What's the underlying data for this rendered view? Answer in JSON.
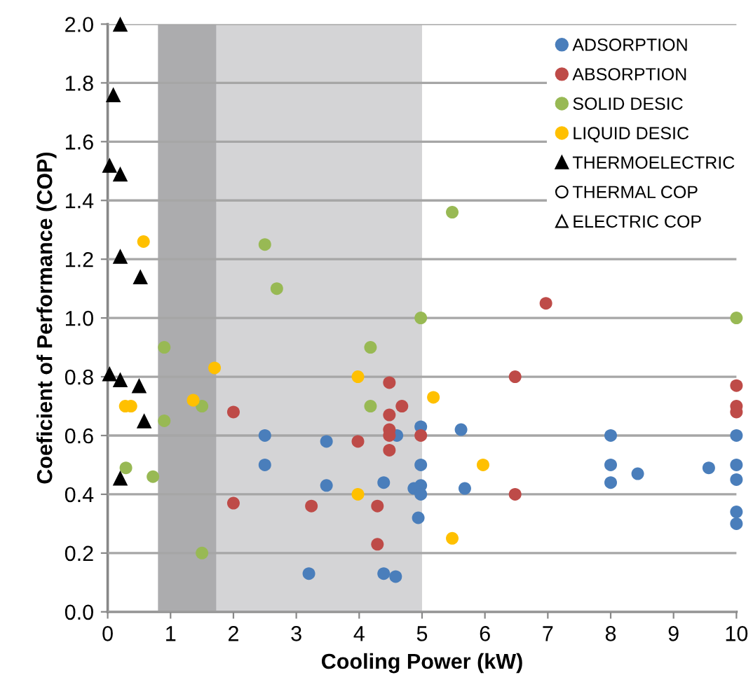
{
  "chart_data": {
    "type": "scatter",
    "xlabel": "Cooling Power (kW)",
    "ylabel": "Coeficient of Performance (COP)",
    "xlim": [
      0,
      10
    ],
    "xticks": [
      0,
      1,
      2,
      3,
      4,
      5,
      6,
      7,
      8,
      9,
      10
    ],
    "ylim": [
      0,
      2.0
    ],
    "yticks": [
      {
        "value": 0,
        "label": "0.0"
      },
      {
        "value": 0.2,
        "label": "0.2"
      },
      {
        "value": 0.4,
        "label": "0.4"
      },
      {
        "value": 0.6,
        "label": "0.6"
      },
      {
        "value": 0.8,
        "label": "0.8"
      },
      {
        "value": 1.0,
        "label": "1.0"
      },
      {
        "value": 1.2,
        "label": "1.2"
      },
      {
        "value": 1.4,
        "label": "1.4"
      },
      {
        "value": 1.6,
        "label": "1.6"
      },
      {
        "value": 1.8,
        "label": "1.8"
      },
      {
        "value": 2.0,
        "label": "2.0"
      }
    ],
    "grid": "y",
    "legend": "top right",
    "bands": [
      {
        "axis": "x",
        "from": 0.8,
        "to": 1.73,
        "color": "#acacae"
      },
      {
        "axis": "x",
        "from": 1.73,
        "to": 5.0,
        "color": "#d4d4d6"
      }
    ],
    "series": [
      {
        "name": "ADSORPTION",
        "color": "#4a7ebb",
        "marker": "circle",
        "x": [
          2.5,
          2.5,
          3.2,
          3.48,
          3.48,
          4.39,
          4.39,
          4.58,
          4.6,
          4.98,
          4.98,
          4.98,
          4.87,
          4.98,
          4.94,
          5.62,
          5.68,
          8.0,
          8.0,
          8.0,
          8.43,
          9.56,
          10,
          10,
          10,
          10,
          10
        ],
        "values": [
          0.6,
          0.5,
          0.13,
          0.58,
          0.43,
          0.44,
          0.13,
          0.12,
          0.6,
          0.63,
          0.5,
          0.43,
          0.42,
          0.4,
          0.32,
          0.62,
          0.42,
          0.6,
          0.5,
          0.44,
          0.47,
          0.49,
          0.6,
          0.5,
          0.45,
          0.34,
          0.3
        ]
      },
      {
        "name": "ABSORPTION",
        "color": "#be4b48",
        "marker": "circle",
        "x": [
          2.0,
          2.0,
          3.24,
          4.48,
          4.68,
          4.48,
          4.48,
          4.48,
          4.48,
          3.98,
          4.98,
          4.29,
          4.29,
          6.48,
          6.48,
          6.97,
          10,
          10,
          10
        ],
        "values": [
          0.68,
          0.37,
          0.36,
          0.78,
          0.7,
          0.67,
          0.62,
          0.6,
          0.55,
          0.58,
          0.6,
          0.36,
          0.23,
          0.8,
          0.4,
          1.05,
          0.77,
          0.7,
          0.68
        ]
      },
      {
        "name": "SOLID DESIC",
        "color": "#98b954",
        "marker": "circle",
        "x": [
          0.9,
          0.9,
          1.5,
          0.29,
          0.72,
          1.5,
          2.5,
          2.69,
          4.18,
          4.18,
          4.98,
          5.48,
          10
        ],
        "values": [
          0.9,
          0.65,
          0.7,
          0.49,
          0.46,
          0.2,
          1.25,
          1.1,
          0.9,
          0.7,
          1.0,
          1.36,
          1.0
        ]
      },
      {
        "name": "LIQUID DESIC",
        "color": "#ffc000",
        "marker": "circle",
        "x": [
          0.57,
          0.28,
          0.37,
          1.7,
          1.36,
          3.98,
          5.18,
          3.98,
          5.97,
          5.48
        ],
        "values": [
          1.26,
          0.7,
          0.7,
          0.83,
          0.72,
          0.8,
          0.73,
          0.4,
          0.5,
          0.25
        ]
      },
      {
        "name": "THERMOELECTRIC",
        "color": "#000000",
        "marker": "triangle",
        "x": [
          0.2,
          0.09,
          0.03,
          0.2,
          0.2,
          0.52,
          0.03,
          0.2,
          0.5,
          0.58,
          0.2
        ],
        "values": [
          2.0,
          1.76,
          1.52,
          1.49,
          1.21,
          1.14,
          0.81,
          0.79,
          0.77,
          0.65,
          0.455
        ]
      },
      {
        "name": "THERMAL COP",
        "color": "#000000",
        "marker": "circle"
      },
      {
        "name": "ELECTRIC COP",
        "color": "#000000",
        "marker": "triangle"
      }
    ]
  }
}
